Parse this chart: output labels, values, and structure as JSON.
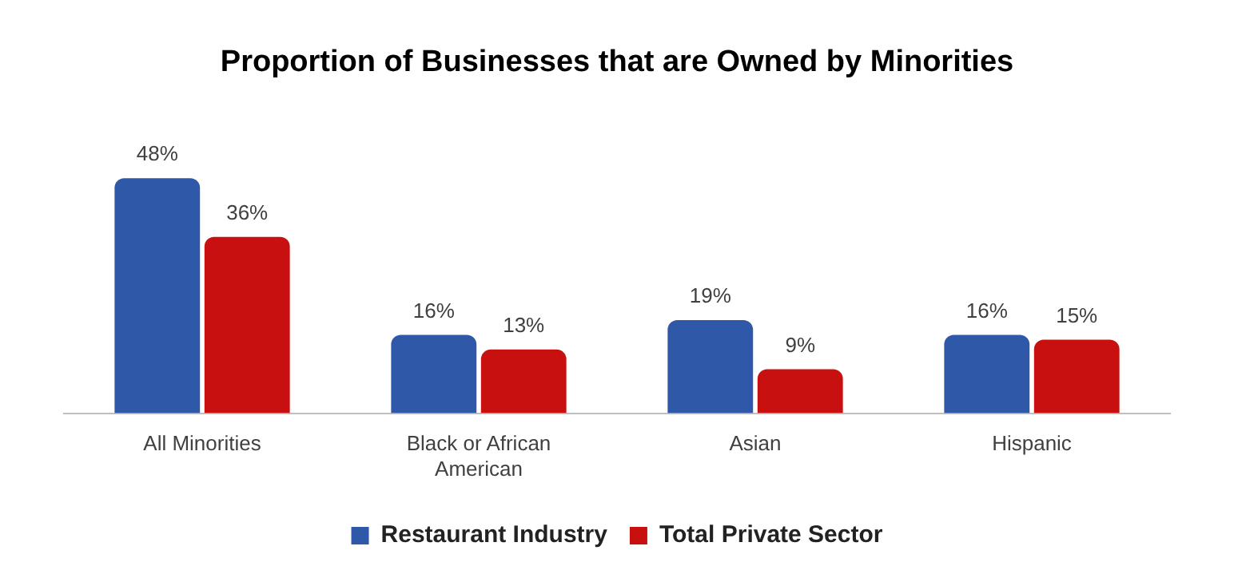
{
  "chart_data": {
    "type": "bar",
    "title": "Proportion of Businesses that are Owned by Minorities",
    "categories": [
      "All Minorities",
      "Black or African American",
      "Asian",
      "Hispanic"
    ],
    "legend": "bottom",
    "grid": false,
    "series": [
      {
        "name": "Restaurant Industry",
        "color": "#2f58a8",
        "values": [
          48,
          16,
          19,
          16
        ],
        "value_labels": [
          "48%",
          "16%",
          "19%",
          "16%"
        ]
      },
      {
        "name": "Total Private Sector",
        "color": "#c81010",
        "values": [
          36,
          13,
          9,
          15
        ],
        "value_labels": [
          "36%",
          "13%",
          "9%",
          "15%"
        ]
      }
    ]
  }
}
